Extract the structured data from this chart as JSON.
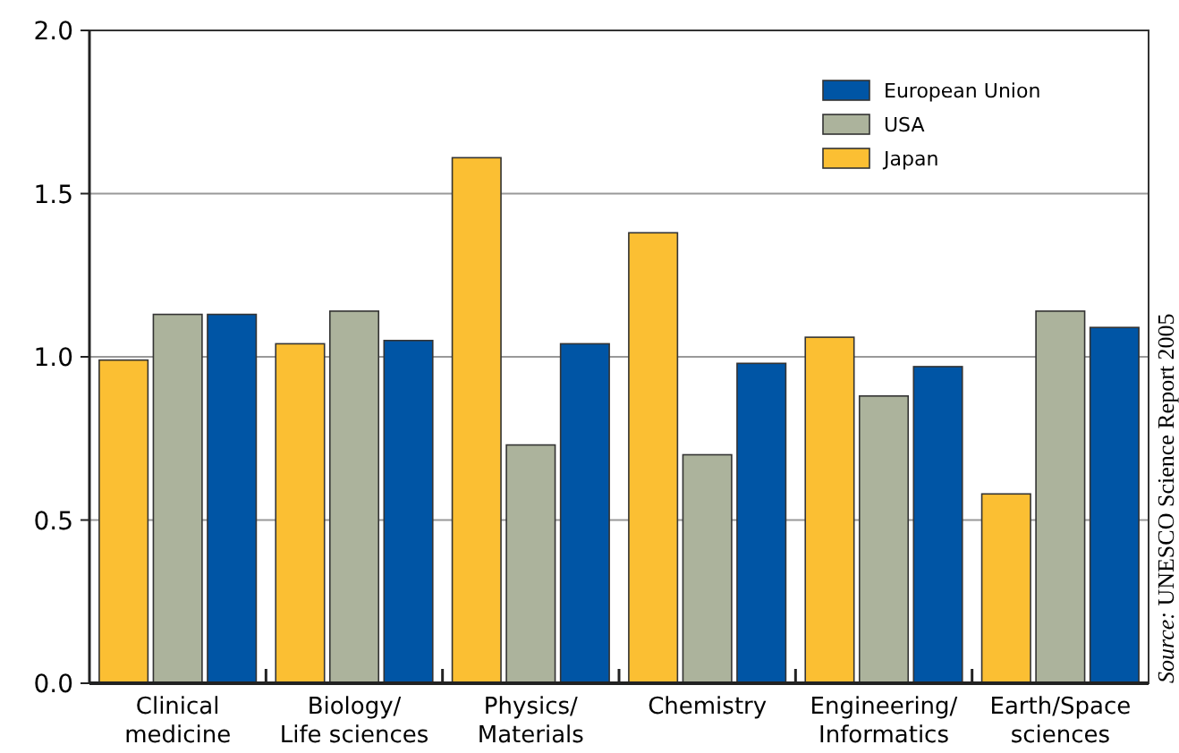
{
  "chart_data": {
    "type": "bar",
    "categories": [
      "Clinical\nmedicine",
      "Biology/\nLife sciences",
      "Physics/\nMaterials",
      "Chemistry",
      "Engineering/\nInformatics",
      "Earth/Space\nsciences"
    ],
    "series": [
      {
        "name": "Japan",
        "color": "#fbbf33",
        "values": [
          0.99,
          1.04,
          1.61,
          1.38,
          1.06,
          0.58
        ]
      },
      {
        "name": "USA",
        "color": "#acb39c",
        "values": [
          1.13,
          1.14,
          0.73,
          0.7,
          0.88,
          1.14
        ]
      },
      {
        "name": "European Union",
        "color": "#0055a5",
        "values": [
          1.13,
          1.05,
          1.04,
          0.98,
          0.97,
          1.09
        ]
      }
    ],
    "ylim": [
      0,
      2
    ],
    "yticks": [
      {
        "value": 0,
        "label": "0.0"
      },
      {
        "value": 0.5,
        "label": "0.5"
      },
      {
        "value": 1,
        "label": "1.0"
      },
      {
        "value": 1.5,
        "label": "1.5"
      },
      {
        "value": 2,
        "label": "2.0"
      }
    ],
    "grid": "y",
    "legend": "top right",
    "annotations": [
      "Source: UNESCO Science Report 2005"
    ]
  }
}
